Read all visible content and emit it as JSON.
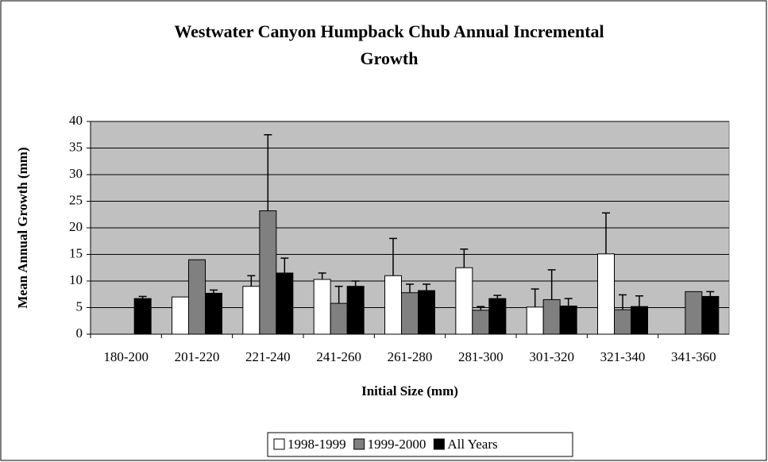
{
  "chart_data": {
    "type": "bar",
    "title": [
      "Westwater Canyon Humpback Chub Annual Incremental",
      "Growth"
    ],
    "x_label": "Initial Size (mm)",
    "y_label": "Mean Annual Growth (mm)",
    "categories": [
      "180-200",
      "201-220",
      "221-240",
      "241-260",
      "261-280",
      "281-300",
      "301-320",
      "321-340",
      "341-360"
    ],
    "series": [
      {
        "name": "1998-1999",
        "color": "#ffffff",
        "values": [
          null,
          7.0,
          9.0,
          10.3,
          11.0,
          12.5,
          5.1,
          15.1,
          null
        ],
        "errors": [
          null,
          null,
          2.0,
          1.2,
          7.0,
          3.5,
          3.4,
          7.7,
          null
        ]
      },
      {
        "name": "1999-2000",
        "color": "#808080",
        "values": [
          null,
          14.0,
          23.2,
          5.8,
          7.8,
          4.5,
          6.5,
          4.6,
          8.0
        ],
        "errors": [
          null,
          null,
          14.3,
          3.2,
          1.6,
          0.7,
          5.6,
          2.8,
          null
        ]
      },
      {
        "name": "All Years",
        "color": "#000000",
        "values": [
          6.7,
          7.7,
          11.5,
          9.0,
          8.2,
          6.7,
          5.3,
          5.2,
          7.1
        ],
        "errors": [
          0.4,
          0.6,
          2.8,
          1.0,
          1.2,
          0.6,
          1.4,
          2.0,
          0.9
        ]
      }
    ],
    "ylim": [
      0,
      40
    ],
    "yticks": [
      0,
      5,
      10,
      15,
      20,
      25,
      30,
      35,
      40
    ],
    "grid": true,
    "legend": "bottom"
  }
}
